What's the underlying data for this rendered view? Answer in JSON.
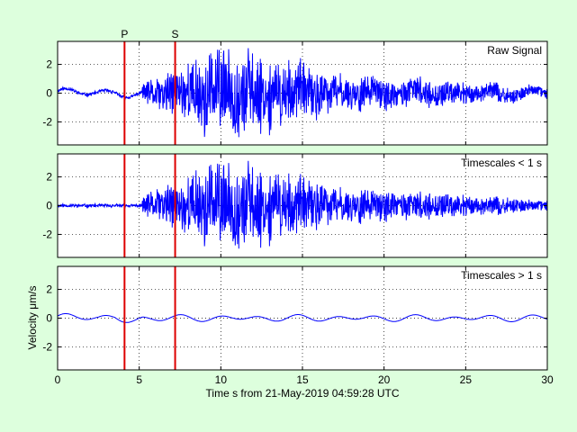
{
  "colors": {
    "background": "#ddffdd",
    "signal": "#0000ff",
    "marker": "#dd0000",
    "axes_bg": "#ffffff"
  },
  "chart_data": [
    {
      "type": "line",
      "panel_label": "Raw Signal",
      "xlim": [
        0,
        30
      ],
      "ylim": [
        -3.6,
        3.6
      ],
      "yticks": [
        -2,
        0,
        2
      ],
      "grid": true,
      "signal": {
        "seed": 11,
        "low_amp": 0.35,
        "high_amp": 0.9,
        "include_low": true,
        "include_high": true
      }
    },
    {
      "type": "line",
      "panel_label": "Timescales < 1 s",
      "xlim": [
        0,
        30
      ],
      "ylim": [
        -3.6,
        3.6
      ],
      "yticks": [
        -2,
        0,
        2
      ],
      "grid": true,
      "signal": {
        "seed": 11,
        "low_amp": 0.0,
        "high_amp": 0.9,
        "include_low": false,
        "include_high": true
      }
    },
    {
      "type": "line",
      "panel_label": "Timescales > 1 s",
      "xlim": [
        0,
        30
      ],
      "ylim": [
        -3.6,
        3.6
      ],
      "yticks": [
        -2,
        0,
        2
      ],
      "xticks": [
        0,
        5,
        10,
        15,
        20,
        25,
        30
      ],
      "grid": true,
      "signal": {
        "seed": 11,
        "low_amp": 0.35,
        "high_amp": 0.0,
        "include_low": true,
        "include_high": false
      }
    }
  ],
  "markers": [
    {
      "label": "P",
      "t": 4.1
    },
    {
      "label": "S",
      "t": 7.2
    }
  ],
  "xlabel": "Time s from 21-May-2019 04:59:28 UTC",
  "ylabel": "Velocity μm/s"
}
